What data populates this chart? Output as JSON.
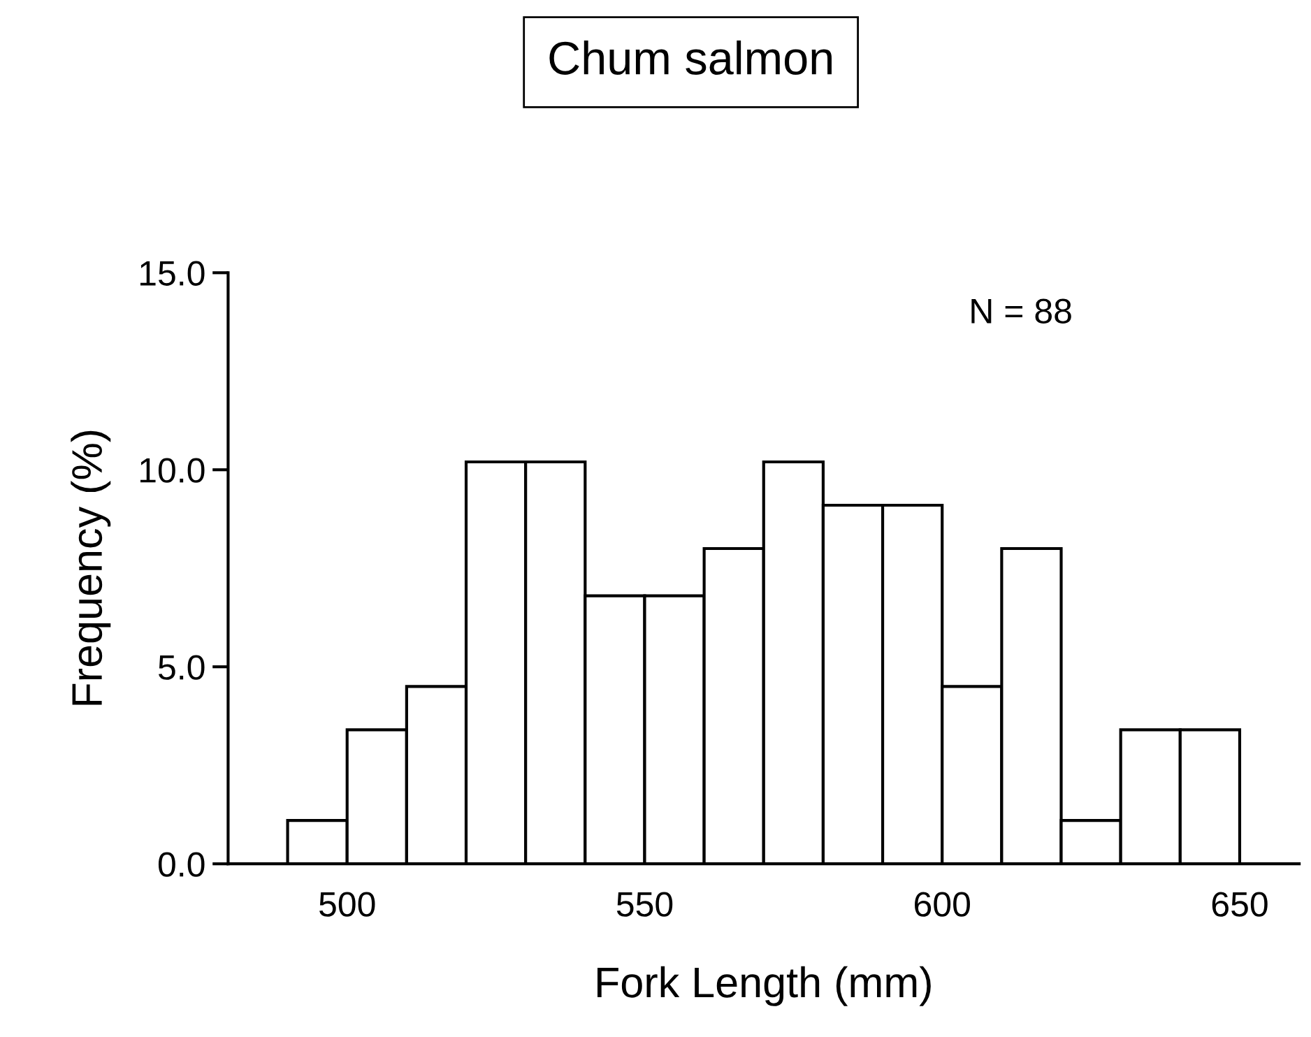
{
  "chart_data": {
    "type": "histogram",
    "title": "Chum salmon",
    "xlabel": "Fork Length (mm)",
    "ylabel": "Frequency (%)",
    "annotations": [
      "N = 88"
    ],
    "bins": [
      490,
      500,
      510,
      520,
      530,
      540,
      550,
      560,
      570,
      580,
      590,
      600,
      610,
      620,
      630,
      640,
      650
    ],
    "values": [
      1.1,
      3.4,
      4.5,
      10.2,
      10.2,
      6.8,
      6.8,
      8.0,
      10.2,
      9.1,
      9.1,
      4.5,
      8.0,
      1.1,
      3.4,
      3.4
    ],
    "color": "#ffffff",
    "xlim": [
      480,
      660
    ],
    "xticks": [
      500,
      550,
      600,
      650
    ],
    "ylim": [
      0,
      15
    ],
    "yticks": [
      {
        "value": 0,
        "label": "0.0"
      },
      {
        "value": 5,
        "label": "5.0"
      },
      {
        "value": 10,
        "label": "10.0"
      },
      {
        "value": 15,
        "label": "15.0"
      }
    ],
    "grid": false,
    "legend": false
  }
}
